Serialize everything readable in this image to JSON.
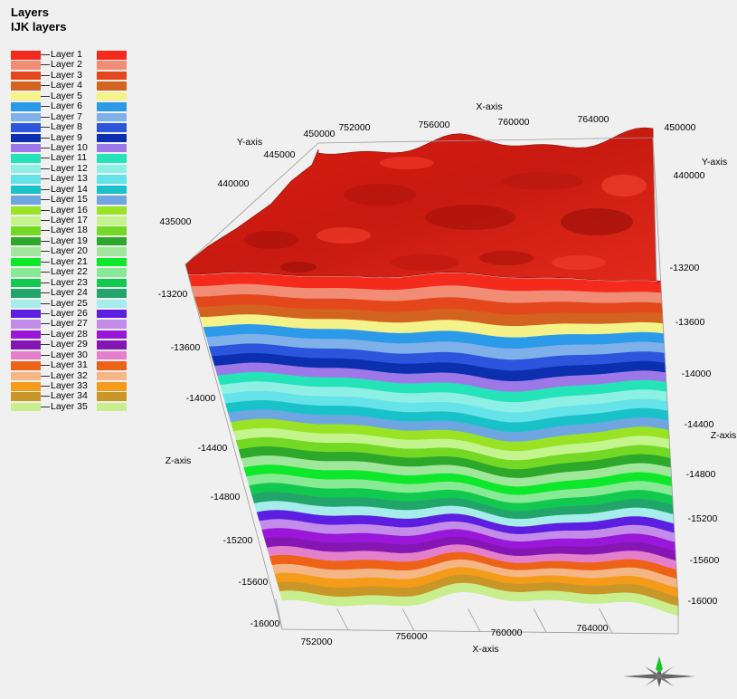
{
  "title": {
    "line1": "Layers",
    "line2": "IJK layers"
  },
  "legend": [
    {
      "label": "Layer 1",
      "color": "#f42a1c"
    },
    {
      "label": "Layer 2",
      "color": "#f18c75"
    },
    {
      "label": "Layer 3",
      "color": "#e3471b"
    },
    {
      "label": "Layer 4",
      "color": "#d46320"
    },
    {
      "label": "Layer 5",
      "color": "#f4f38a"
    },
    {
      "label": "Layer 6",
      "color": "#2b9ae8"
    },
    {
      "label": "Layer 7",
      "color": "#7fb0ea"
    },
    {
      "label": "Layer 8",
      "color": "#2a55dc"
    },
    {
      "label": "Layer 9",
      "color": "#0b2fae"
    },
    {
      "label": "Layer 10",
      "color": "#9e78e8"
    },
    {
      "label": "Layer 11",
      "color": "#25e3b8"
    },
    {
      "label": "Layer 12",
      "color": "#8ef0e5"
    },
    {
      "label": "Layer 13",
      "color": "#66e3e9"
    },
    {
      "label": "Layer 14",
      "color": "#19c2c9"
    },
    {
      "label": "Layer 15",
      "color": "#6fa6e2"
    },
    {
      "label": "Layer 16",
      "color": "#99e324"
    },
    {
      "label": "Layer 17",
      "color": "#c4f48e"
    },
    {
      "label": "Layer 18",
      "color": "#74d924"
    },
    {
      "label": "Layer 19",
      "color": "#2da82b"
    },
    {
      "label": "Layer 20",
      "color": "#a0e79c"
    },
    {
      "label": "Layer 21",
      "color": "#0ee82a"
    },
    {
      "label": "Layer 22",
      "color": "#88ea94"
    },
    {
      "label": "Layer 23",
      "color": "#12c94f"
    },
    {
      "label": "Layer 24",
      "color": "#21a56a"
    },
    {
      "label": "Layer 25",
      "color": "#a6ecea"
    },
    {
      "label": "Layer 26",
      "color": "#5c1ee0"
    },
    {
      "label": "Layer 27",
      "color": "#c48ce9"
    },
    {
      "label": "Layer 28",
      "color": "#9a17d9"
    },
    {
      "label": "Layer 29",
      "color": "#8416b4"
    },
    {
      "label": "Layer 30",
      "color": "#e47fcc"
    },
    {
      "label": "Layer 31",
      "color": "#ee6217"
    },
    {
      "label": "Layer 32",
      "color": "#f6b585"
    },
    {
      "label": "Layer 33",
      "color": "#f49c1a"
    },
    {
      "label": "Layer 34",
      "color": "#c99628"
    },
    {
      "label": "Layer 35",
      "color": "#c8ee8e"
    }
  ],
  "axes": {
    "x_name": "X-axis",
    "y_name": "Y-axis",
    "z_name": "Z-axis",
    "x_ticks_top": [
      "752000",
      "756000",
      "760000",
      "764000"
    ],
    "x_ticks_bottom": [
      "752000",
      "756000",
      "760000",
      "764000"
    ],
    "y_ticks_left": [
      "450000",
      "445000",
      "440000",
      "435000"
    ],
    "y_ticks_right": [
      "450000",
      "440000"
    ],
    "z_ticks_left": [
      "-13200",
      "-13600",
      "-14000",
      "-14400",
      "-14800",
      "-15200",
      "-15600",
      "-16000"
    ],
    "z_ticks_right": [
      "-13200",
      "-13600",
      "-14000",
      "-14400",
      "-14800",
      "-15200",
      "-15600",
      "-16000"
    ]
  },
  "compass_icon": "north-arrow-compass-icon"
}
